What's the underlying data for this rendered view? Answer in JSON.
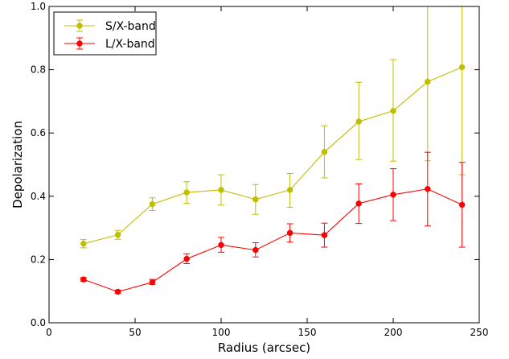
{
  "chart_data": {
    "type": "line",
    "xlabel": "Radius (arcsec)",
    "ylabel": "Depolarization",
    "xlim": [
      0,
      250
    ],
    "ylim": [
      0.0,
      1.0
    ],
    "xticks": [
      0,
      50,
      100,
      150,
      200,
      250
    ],
    "yticks": [
      0.0,
      0.2,
      0.4,
      0.6,
      0.8,
      1.0
    ],
    "ytick_labels": [
      "0.0",
      "0.2",
      "0.4",
      "0.6",
      "0.8",
      "1.0"
    ],
    "legend_position": "top-left",
    "x": [
      20,
      40,
      60,
      80,
      100,
      120,
      140,
      160,
      180,
      200,
      220,
      240
    ],
    "series": [
      {
        "name": "S/X-band",
        "color": "#bfbf00",
        "values": [
          0.25,
          0.278,
          0.375,
          0.412,
          0.42,
          0.39,
          0.42,
          0.54,
          0.636,
          0.67,
          0.762,
          0.808
        ],
        "err_low": [
          0.237,
          0.264,
          0.355,
          0.378,
          0.372,
          0.343,
          0.365,
          0.458,
          0.516,
          0.511,
          0.512,
          0.468
        ],
        "err_high": [
          0.263,
          0.292,
          0.395,
          0.446,
          0.468,
          0.437,
          0.472,
          0.623,
          0.76,
          0.832,
          1.0,
          1.0
        ]
      },
      {
        "name": "L/X-band",
        "color": "#ff0000",
        "values": [
          0.137,
          0.098,
          0.128,
          0.202,
          0.246,
          0.23,
          0.284,
          0.277,
          0.377,
          0.405,
          0.423,
          0.373
        ],
        "err_low": [
          0.131,
          0.093,
          0.121,
          0.187,
          0.223,
          0.208,
          0.255,
          0.239,
          0.314,
          0.323,
          0.306,
          0.239
        ],
        "err_high": [
          0.143,
          0.103,
          0.137,
          0.218,
          0.27,
          0.253,
          0.313,
          0.315,
          0.439,
          0.487,
          0.539,
          0.507
        ]
      }
    ]
  }
}
